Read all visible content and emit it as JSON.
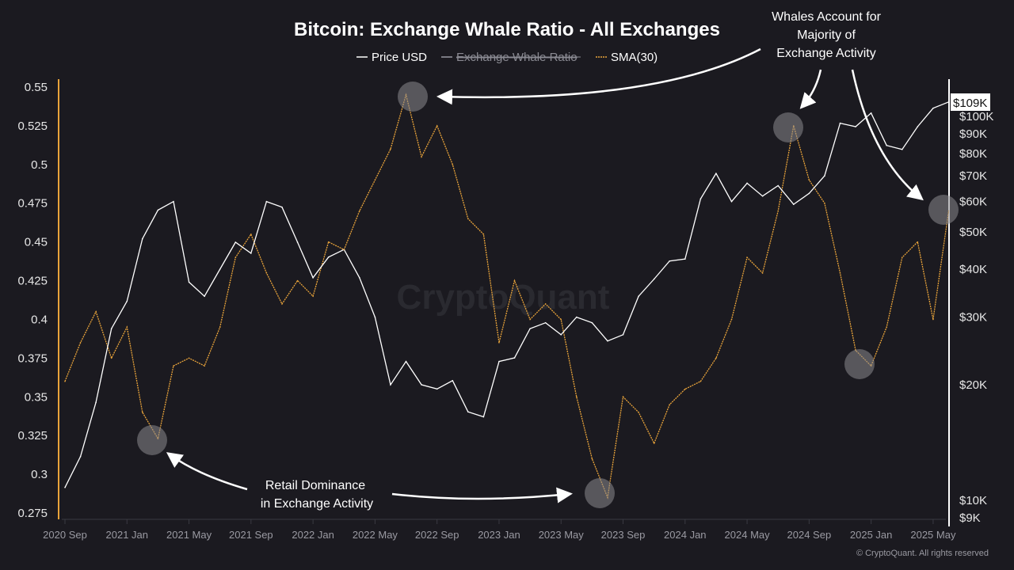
{
  "chart_data": {
    "type": "line",
    "title": "Bitcoin: Exchange Whale Ratio - All Exchanges",
    "legend": {
      "placement": "top-center",
      "items": [
        {
          "label": "Price USD",
          "color": "#ffffff",
          "hidden": false
        },
        {
          "label": "Exchange Whale Ratio",
          "color": "#9a9aa2",
          "hidden": true
        },
        {
          "label": "SMA(30)",
          "color": "#e8a33a",
          "hidden": false
        }
      ]
    },
    "x_ticks": [
      "2020 Sep",
      "2021 Jan",
      "2021 May",
      "2021 Sep",
      "2022 Jan",
      "2022 May",
      "2022 Sep",
      "2023 Jan",
      "2023 May",
      "2023 Sep",
      "2024 Jan",
      "2024 May",
      "2024 Sep",
      "2025 Jan",
      "2025 May"
    ],
    "left_axis": {
      "ylim": [
        0.275,
        0.55
      ],
      "ticks": [
        "0.55",
        "0.525",
        "0.5",
        "0.475",
        "0.45",
        "0.425",
        "0.4",
        "0.375",
        "0.35",
        "0.325",
        "0.3",
        "0.275"
      ],
      "color": "#e8a33a"
    },
    "right_axis": {
      "scale": "log",
      "ylim": [
        9000,
        115000
      ],
      "ticks": [
        {
          "label": "$100K",
          "value": 100000
        },
        {
          "label": "$90K",
          "value": 90000
        },
        {
          "label": "$80K",
          "value": 80000
        },
        {
          "label": "$70K",
          "value": 70000
        },
        {
          "label": "$60K",
          "value": 60000
        },
        {
          "label": "$50K",
          "value": 50000
        },
        {
          "label": "$40K",
          "value": 40000
        },
        {
          "label": "$30K",
          "value": 30000
        },
        {
          "label": "$20K",
          "value": 20000
        },
        {
          "label": "$10K",
          "value": 10000
        },
        {
          "label": "$9K",
          "value": 9000
        }
      ],
      "last_value_label": "$109K"
    },
    "grid": false,
    "x": [
      "2020-09",
      "2020-10",
      "2020-11",
      "2020-12",
      "2021-01",
      "2021-02",
      "2021-03",
      "2021-04",
      "2021-05",
      "2021-06",
      "2021-07",
      "2021-08",
      "2021-09",
      "2021-10",
      "2021-11",
      "2021-12",
      "2022-01",
      "2022-02",
      "2022-03",
      "2022-04",
      "2022-05",
      "2022-06",
      "2022-07",
      "2022-08",
      "2022-09",
      "2022-10",
      "2022-11",
      "2022-12",
      "2023-01",
      "2023-02",
      "2023-03",
      "2023-04",
      "2023-05",
      "2023-06",
      "2023-07",
      "2023-08",
      "2023-09",
      "2023-10",
      "2023-11",
      "2023-12",
      "2024-01",
      "2024-02",
      "2024-03",
      "2024-04",
      "2024-05",
      "2024-06",
      "2024-07",
      "2024-08",
      "2024-09",
      "2024-10",
      "2024-11",
      "2024-12",
      "2025-01",
      "2025-02",
      "2025-03",
      "2025-04",
      "2025-05",
      "2025-06"
    ],
    "series": [
      {
        "name": "Price USD",
        "axis": "right",
        "color": "#ffffff",
        "values": [
          10800,
          13000,
          18000,
          28000,
          33000,
          48000,
          57000,
          60000,
          37000,
          34000,
          40000,
          47000,
          44000,
          60000,
          58000,
          47000,
          38000,
          43000,
          45000,
          38000,
          30000,
          20000,
          23000,
          20000,
          19500,
          20500,
          17000,
          16500,
          23000,
          23500,
          28000,
          29000,
          27000,
          30000,
          29000,
          26000,
          27000,
          34000,
          37700,
          42000,
          42500,
          61000,
          71000,
          60000,
          67000,
          62000,
          66000,
          59000,
          63000,
          70000,
          96000,
          94000,
          102000,
          84000,
          82000,
          94000,
          105000,
          109000
        ]
      },
      {
        "name": "SMA(30)",
        "axis": "left",
        "color": "#e8a33a",
        "values": [
          0.36,
          0.385,
          0.405,
          0.375,
          0.395,
          0.34,
          0.323,
          0.37,
          0.375,
          0.37,
          0.395,
          0.44,
          0.455,
          0.43,
          0.41,
          0.425,
          0.415,
          0.45,
          0.445,
          0.47,
          0.49,
          0.51,
          0.545,
          0.505,
          0.525,
          0.5,
          0.465,
          0.455,
          0.385,
          0.425,
          0.4,
          0.41,
          0.4,
          0.35,
          0.31,
          0.285,
          0.35,
          0.34,
          0.32,
          0.345,
          0.355,
          0.36,
          0.375,
          0.4,
          0.44,
          0.43,
          0.47,
          0.525,
          0.49,
          0.475,
          0.43,
          0.38,
          0.37,
          0.395,
          0.44,
          0.45,
          0.4,
          0.47
        ]
      }
    ],
    "annotations": {
      "top": "Whales Account for Majority of Exchange Activity",
      "top_lines": [
        "Whales Account for",
        "Majority of",
        "Exchange Activity"
      ],
      "bottom_lines": [
        "Retail Dominance",
        "in Exchange Activity"
      ]
    },
    "watermark": "CryptoQuant",
    "copyright": "© CryptoQuant. All rights reserved"
  }
}
